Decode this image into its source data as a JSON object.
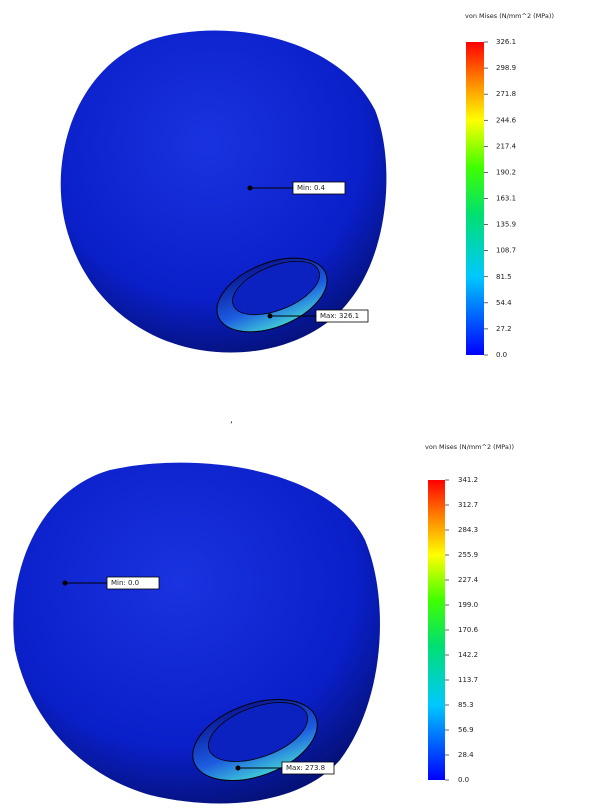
{
  "panels": [
    {
      "legend_title": "von Mises (N/mm^2 (MPa))",
      "legend_ticks": [
        "326.1",
        "298.9",
        "271.8",
        "244.6",
        "217.4",
        "190.2",
        "163.1",
        "135.9",
        "108.7",
        "81.5",
        "54.4",
        "27.2",
        "0.0"
      ],
      "min_label": "Min: 0.4",
      "max_label": "Max: 326.1"
    },
    {
      "legend_title": "von Mises (N/mm^2 (MPa))",
      "legend_ticks": [
        "341.2",
        "312.7",
        "284.3",
        "255.9",
        "227.4",
        "199.0",
        "170.6",
        "142.2",
        "113.7",
        "85.3",
        "56.9",
        "28.4",
        "0.0"
      ],
      "min_label": "Min: 0.0",
      "max_label": "Max: 273.8"
    }
  ]
}
